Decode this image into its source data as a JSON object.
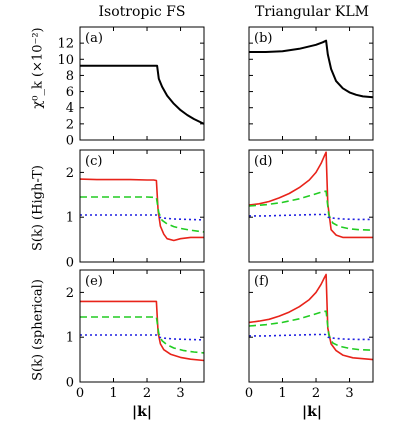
{
  "column_titles": [
    "Isotropic FS",
    "Triangular KLM"
  ],
  "row_ylabels": [
    "χ⁰_k (×10⁻²)",
    "S(k) (High-T)",
    "S(k) (spherical)"
  ],
  "xlabel": "|k|",
  "chart_data": [
    {
      "type": "line",
      "panel_label": "(a)",
      "xlim": [
        0,
        3.7
      ],
      "ylim": [
        0,
        14
      ],
      "xticks": [
        0,
        1,
        2,
        3
      ],
      "yticks": [
        0,
        2,
        4,
        6,
        8,
        10,
        12
      ],
      "series": [
        {
          "color": "#000000",
          "dash": "solid",
          "x": [
            0,
            0.5,
            1,
            1.5,
            2,
            2.2,
            2.3,
            2.35,
            2.45,
            2.6,
            2.8,
            3.0,
            3.2,
            3.4,
            3.7
          ],
          "y": [
            9.2,
            9.2,
            9.2,
            9.2,
            9.2,
            9.2,
            9.2,
            7.6,
            6.6,
            5.5,
            4.5,
            3.7,
            3.1,
            2.6,
            2.0
          ]
        }
      ]
    },
    {
      "type": "line",
      "panel_label": "(b)",
      "xlim": [
        0,
        3.7
      ],
      "ylim": [
        0,
        14
      ],
      "xticks": [
        0,
        1,
        2,
        3
      ],
      "yticks": [
        0,
        2,
        4,
        6,
        8,
        10,
        12
      ],
      "series": [
        {
          "color": "#000000",
          "dash": "solid",
          "x": [
            0,
            0.5,
            1,
            1.5,
            2,
            2.2,
            2.3,
            2.35,
            2.45,
            2.6,
            2.8,
            3.0,
            3.2,
            3.4,
            3.7
          ],
          "y": [
            10.9,
            10.9,
            11.0,
            11.3,
            11.8,
            12.1,
            12.3,
            10.6,
            8.8,
            7.3,
            6.4,
            5.9,
            5.6,
            5.4,
            5.3
          ]
        }
      ]
    },
    {
      "type": "line",
      "panel_label": "(c)",
      "xlim": [
        0,
        3.7
      ],
      "ylim": [
        0,
        2.5
      ],
      "xticks": [
        0,
        1,
        2,
        3
      ],
      "yticks": [
        0,
        1,
        2
      ],
      "series": [
        {
          "color": "#e8231a",
          "dash": "solid",
          "x": [
            0,
            0.5,
            1,
            1.5,
            2,
            2.2,
            2.28,
            2.33,
            2.4,
            2.5,
            2.6,
            2.8,
            3.0,
            3.3,
            3.7
          ],
          "y": [
            1.85,
            1.84,
            1.84,
            1.84,
            1.83,
            1.83,
            1.82,
            1.15,
            0.8,
            0.62,
            0.52,
            0.48,
            0.52,
            0.55,
            0.55
          ]
        },
        {
          "color": "#22cc22",
          "dash": "dashed",
          "x": [
            0,
            0.5,
            1,
            1.5,
            2,
            2.28,
            2.35,
            2.45,
            2.6,
            2.8,
            3.0,
            3.3,
            3.7
          ],
          "y": [
            1.45,
            1.45,
            1.45,
            1.45,
            1.45,
            1.44,
            1.1,
            0.93,
            0.85,
            0.79,
            0.75,
            0.71,
            0.67
          ]
        },
        {
          "color": "#1f1fe0",
          "dash": "dotted",
          "x": [
            0,
            0.5,
            1,
            1.5,
            2,
            2.28,
            2.35,
            2.5,
            2.8,
            3.2,
            3.7
          ],
          "y": [
            1.05,
            1.05,
            1.05,
            1.05,
            1.05,
            1.05,
            1.0,
            0.98,
            0.96,
            0.95,
            0.94
          ]
        }
      ]
    },
    {
      "type": "line",
      "panel_label": "(d)",
      "xlim": [
        0,
        3.7
      ],
      "ylim": [
        0,
        2.5
      ],
      "xticks": [
        0,
        1,
        2,
        3
      ],
      "yticks": [
        0,
        1,
        2
      ],
      "series": [
        {
          "color": "#e8231a",
          "dash": "solid",
          "x": [
            0,
            0.3,
            0.6,
            0.9,
            1.2,
            1.5,
            1.8,
            2.0,
            2.15,
            2.25,
            2.3,
            2.35,
            2.45,
            2.6,
            2.8,
            3.1,
            3.7
          ],
          "y": [
            1.27,
            1.3,
            1.35,
            1.43,
            1.53,
            1.66,
            1.83,
            2.0,
            2.2,
            2.37,
            2.45,
            1.3,
            0.72,
            0.6,
            0.55,
            0.55,
            0.55
          ]
        },
        {
          "color": "#22cc22",
          "dash": "dashed",
          "x": [
            0,
            0.5,
            1,
            1.5,
            1.9,
            2.2,
            2.3,
            2.38,
            2.5,
            2.7,
            3.0,
            3.3,
            3.7
          ],
          "y": [
            1.25,
            1.28,
            1.33,
            1.41,
            1.5,
            1.57,
            1.58,
            1.05,
            0.87,
            0.79,
            0.74,
            0.72,
            0.71
          ]
        },
        {
          "color": "#1f1fe0",
          "dash": "dotted",
          "x": [
            0,
            0.5,
            1,
            1.5,
            2,
            2.28,
            2.35,
            2.5,
            2.8,
            3.2,
            3.7
          ],
          "y": [
            1.03,
            1.03,
            1.04,
            1.05,
            1.06,
            1.06,
            1.0,
            0.98,
            0.96,
            0.95,
            0.95
          ]
        }
      ]
    },
    {
      "type": "line",
      "panel_label": "(e)",
      "xlim": [
        0,
        3.7
      ],
      "ylim": [
        0,
        2.5
      ],
      "xticks": [
        0,
        1,
        2,
        3
      ],
      "yticks": [
        0,
        1,
        2
      ],
      "series": [
        {
          "color": "#e8231a",
          "dash": "solid",
          "x": [
            0,
            0.5,
            1,
            1.5,
            2,
            2.28,
            2.33,
            2.4,
            2.5,
            2.7,
            3.0,
            3.3,
            3.7
          ],
          "y": [
            1.8,
            1.8,
            1.8,
            1.8,
            1.8,
            1.8,
            1.1,
            0.85,
            0.72,
            0.62,
            0.55,
            0.51,
            0.48
          ]
        },
        {
          "color": "#22cc22",
          "dash": "dashed",
          "x": [
            0,
            0.5,
            1,
            1.5,
            2,
            2.28,
            2.35,
            2.45,
            2.6,
            2.8,
            3.1,
            3.4,
            3.7
          ],
          "y": [
            1.45,
            1.45,
            1.45,
            1.45,
            1.45,
            1.45,
            1.08,
            0.92,
            0.83,
            0.76,
            0.7,
            0.67,
            0.65
          ]
        },
        {
          "color": "#1f1fe0",
          "dash": "dotted",
          "x": [
            0,
            0.5,
            1,
            1.5,
            2,
            2.28,
            2.35,
            2.5,
            2.8,
            3.2,
            3.7
          ],
          "y": [
            1.05,
            1.05,
            1.05,
            1.05,
            1.05,
            1.05,
            1.0,
            0.98,
            0.96,
            0.95,
            0.94
          ]
        }
      ]
    },
    {
      "type": "line",
      "panel_label": "(f)",
      "xlim": [
        0,
        3.7
      ],
      "ylim": [
        0,
        2.5
      ],
      "xticks": [
        0,
        1,
        2,
        3
      ],
      "yticks": [
        0,
        1,
        2
      ],
      "series": [
        {
          "color": "#e8231a",
          "dash": "solid",
          "x": [
            0,
            0.3,
            0.6,
            0.9,
            1.2,
            1.5,
            1.8,
            2.0,
            2.15,
            2.25,
            2.3,
            2.35,
            2.45,
            2.6,
            2.8,
            3.1,
            3.7
          ],
          "y": [
            1.33,
            1.36,
            1.4,
            1.47,
            1.56,
            1.68,
            1.84,
            2.0,
            2.18,
            2.33,
            2.4,
            1.2,
            0.85,
            0.7,
            0.6,
            0.54,
            0.5
          ]
        },
        {
          "color": "#22cc22",
          "dash": "dashed",
          "x": [
            0,
            0.5,
            1,
            1.5,
            1.9,
            2.2,
            2.3,
            2.38,
            2.5,
            2.7,
            3.0,
            3.3,
            3.7
          ],
          "y": [
            1.25,
            1.28,
            1.33,
            1.41,
            1.5,
            1.57,
            1.58,
            1.05,
            0.87,
            0.8,
            0.75,
            0.72,
            0.71
          ]
        },
        {
          "color": "#1f1fe0",
          "dash": "dotted",
          "x": [
            0,
            0.5,
            1,
            1.5,
            2,
            2.28,
            2.35,
            2.5,
            2.8,
            3.2,
            3.7
          ],
          "y": [
            1.03,
            1.03,
            1.04,
            1.05,
            1.06,
            1.06,
            1.0,
            0.98,
            0.96,
            0.95,
            0.95
          ]
        }
      ]
    }
  ]
}
